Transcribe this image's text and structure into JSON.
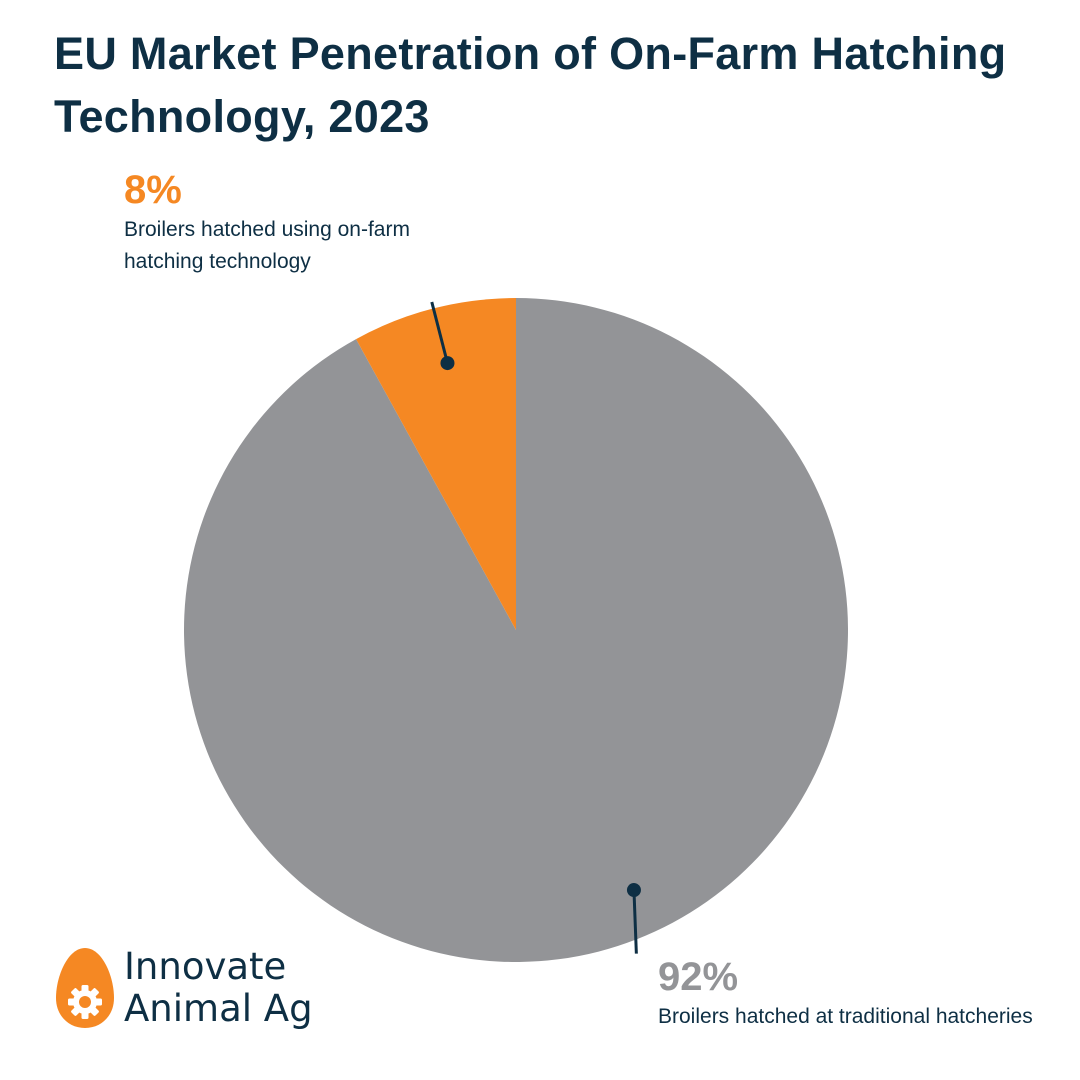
{
  "title": "EU Market Penetration of On-Farm Hatching Technology, 2023",
  "chart_data": {
    "type": "pie",
    "title": "EU Market Penetration of On-Farm Hatching Technology, 2023",
    "slices": [
      {
        "label": "Broilers hatched at traditional hatcheries",
        "value": 92,
        "display": "92%",
        "color": "#939497"
      },
      {
        "label": "Broilers hatched using on-farm hatching technology",
        "value": 8,
        "display": "8%",
        "color": "#f58823"
      }
    ],
    "legend": "none"
  },
  "logo": {
    "line1": "Innovate",
    "line2": "Animal Ag",
    "icon": "egg-gear-icon",
    "color": "#f58823"
  },
  "colors": {
    "navy": "#0e2f44",
    "orange": "#f58823",
    "gray": "#939497"
  }
}
